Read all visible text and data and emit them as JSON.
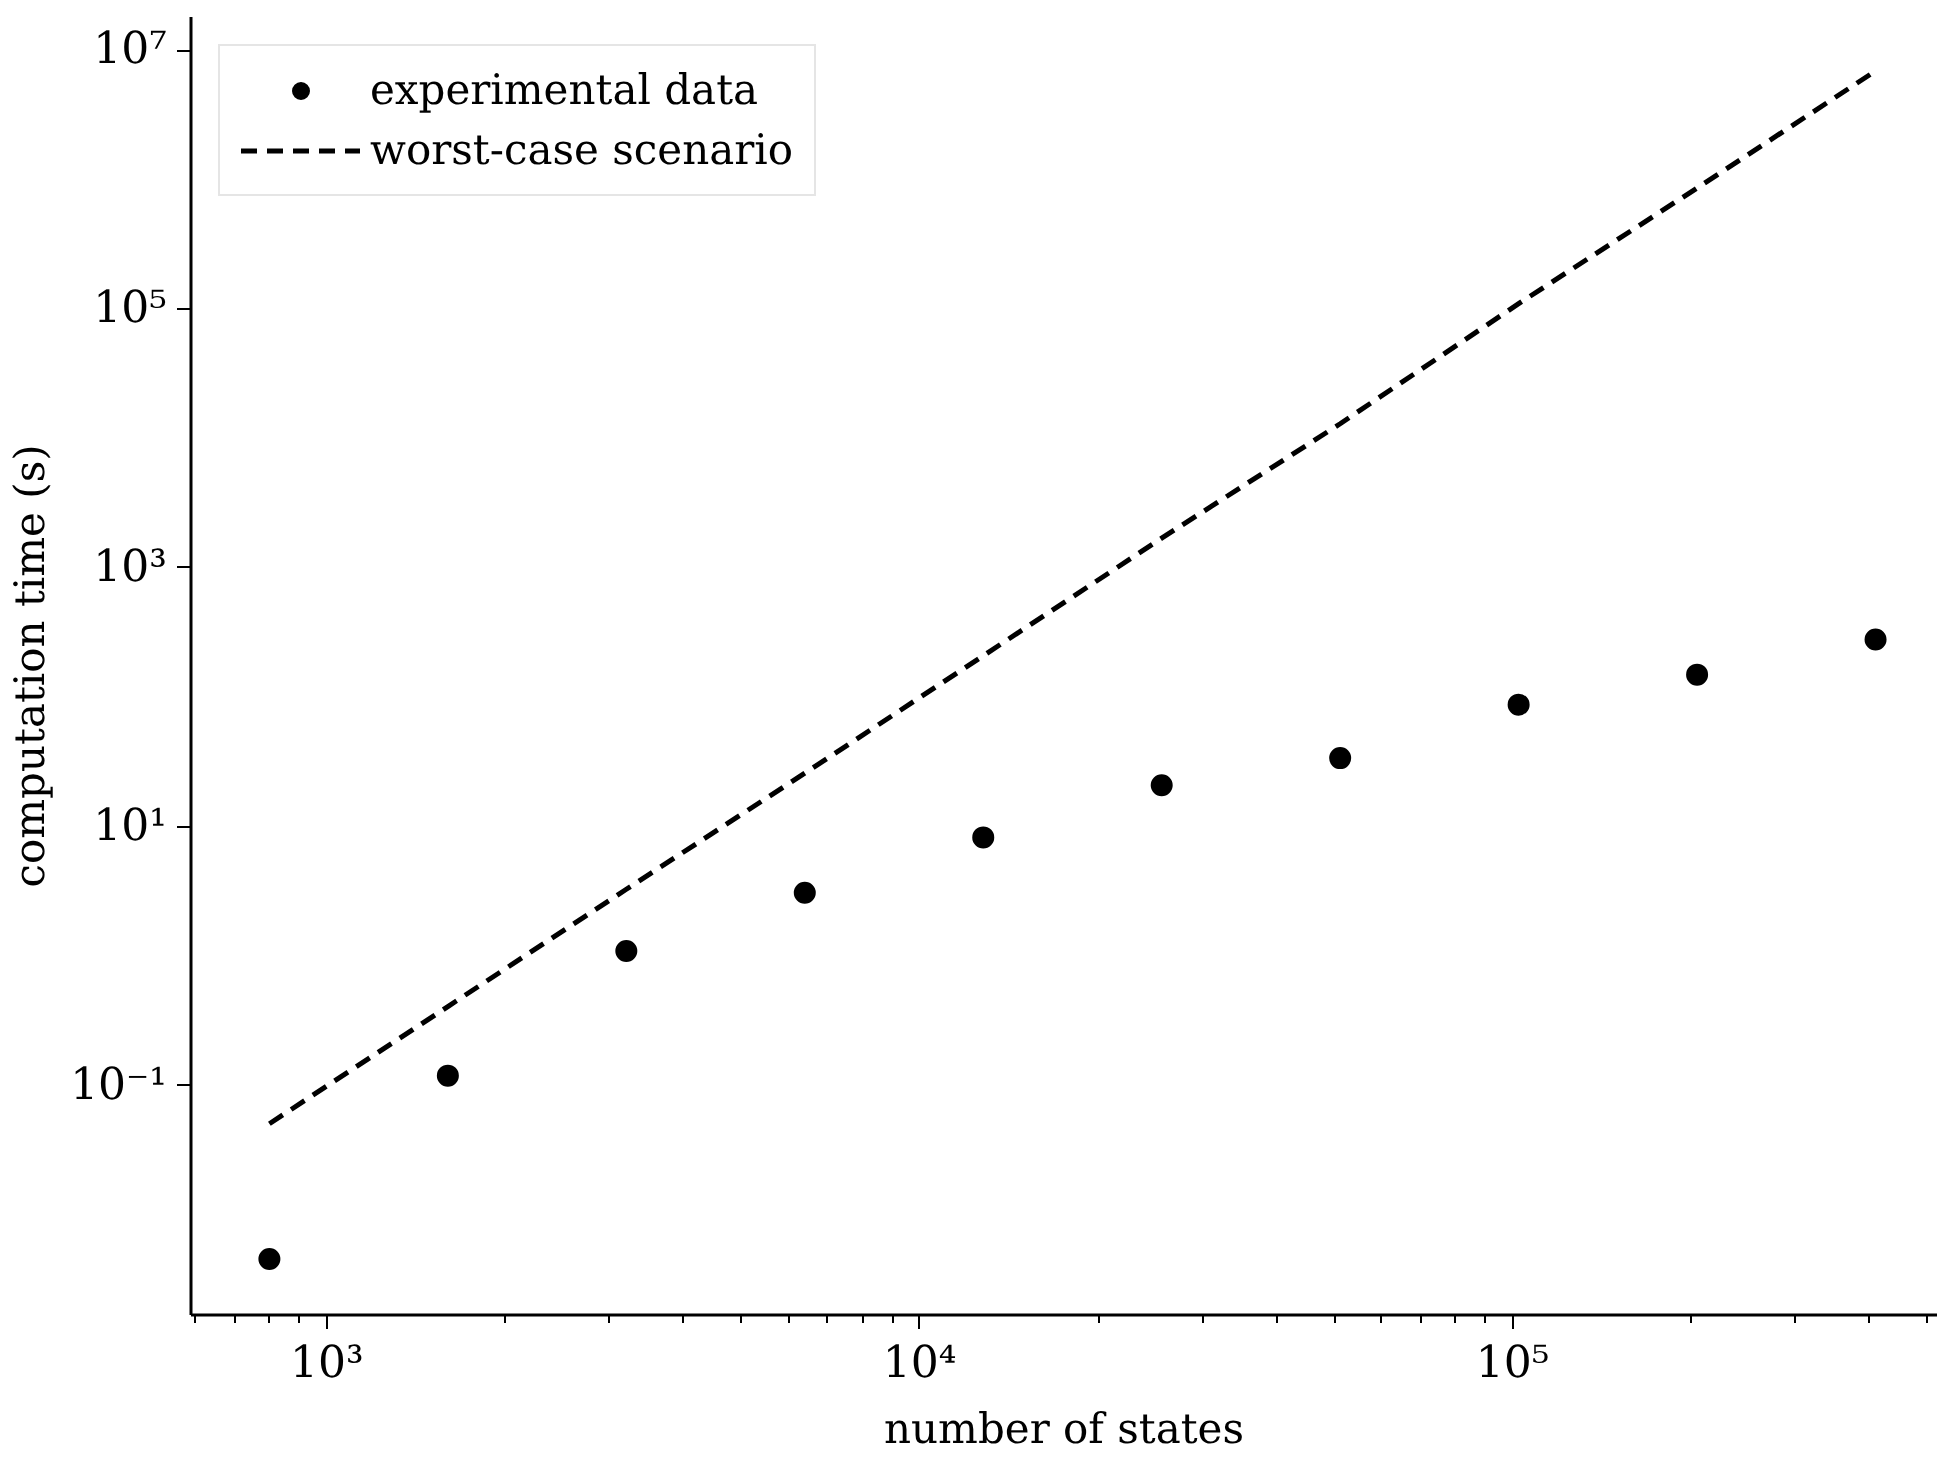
{
  "chart_data": {
    "type": "scatter",
    "xlabel": "number of states",
    "ylabel": "computation time (s)",
    "log": "xy",
    "grid": false,
    "legend": "top left",
    "xlim": [
      590,
      520000
    ],
    "ylim": [
      0.0017,
      18000000
    ],
    "xticks": [
      {
        "value": 1000,
        "label": "10³"
      },
      {
        "value": 10000,
        "label": "10⁴"
      },
      {
        "value": 100000,
        "label": "10⁵"
      }
    ],
    "yticks": [
      {
        "value": 0.1,
        "label": "10⁻¹"
      },
      {
        "value": 10,
        "label": "10¹"
      },
      {
        "value": 1000,
        "label": "10³"
      },
      {
        "value": 100000,
        "label": "10⁵"
      },
      {
        "value": 10000000,
        "label": "10⁷"
      }
    ],
    "x": [
      800,
      1600,
      3200,
      6400,
      12800,
      25600,
      51200,
      102400,
      204800,
      409600
    ],
    "series": [
      {
        "name": "experimental data",
        "marker": "circle",
        "color": "#000000",
        "values": [
          0.0046,
          0.12,
          1.1,
          3.1,
          8.3,
          21,
          34,
          88,
          150,
          280
        ]
      },
      {
        "name": "worst-case scenario",
        "type": "line",
        "line_style": "dashed",
        "marker": "none",
        "color": "#000000",
        "values": [
          0.051,
          0.41,
          3.3,
          26,
          210,
          1700,
          13000,
          110000,
          860000,
          6900000
        ]
      }
    ]
  }
}
